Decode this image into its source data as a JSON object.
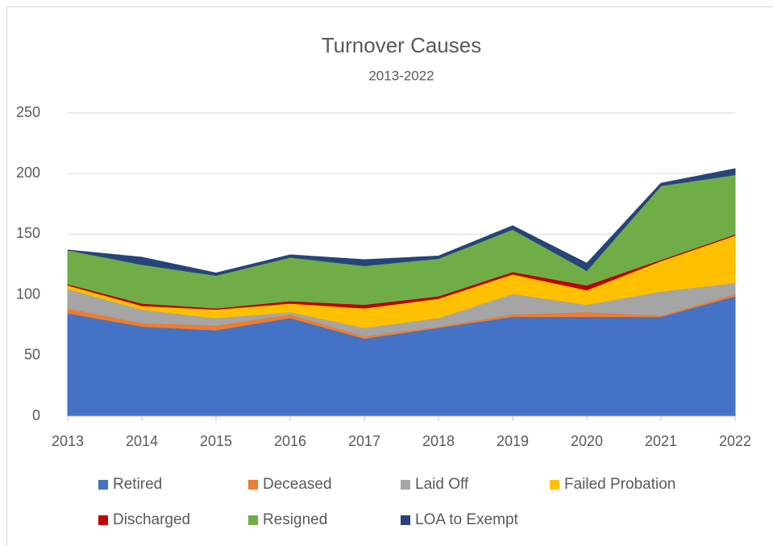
{
  "chart_data": {
    "type": "stacked_area",
    "title": "Turnover Causes",
    "subtitle": "2013-2022",
    "categories": [
      "2013",
      "2014",
      "2015",
      "2016",
      "2017",
      "2018",
      "2019",
      "2020",
      "2021",
      "2022"
    ],
    "series": [
      {
        "name": "Retired",
        "color": "#4472c4",
        "values": [
          85,
          74,
          71,
          81,
          64,
          73,
          82,
          82,
          82,
          99
        ]
      },
      {
        "name": "Deceased",
        "color": "#ed7d31",
        "values": [
          4,
          3,
          4,
          3,
          2,
          1,
          2,
          4,
          1,
          2
        ]
      },
      {
        "name": "Laid Off",
        "color": "#a5a5a5",
        "values": [
          16,
          11,
          6,
          2,
          7,
          7,
          17,
          6,
          20,
          9
        ]
      },
      {
        "name": "Failed Probation",
        "color": "#ffc000",
        "values": [
          3,
          3,
          7,
          7,
          16,
          16,
          16,
          12,
          25,
          39
        ]
      },
      {
        "name": "Discharged",
        "color": "#c00000",
        "values": [
          1,
          2,
          1,
          2,
          3,
          2,
          2,
          4,
          1,
          1
        ]
      },
      {
        "name": "Resigned",
        "color": "#70ad47",
        "values": [
          28,
          32,
          27,
          36,
          32,
          31,
          35,
          12,
          61,
          49
        ]
      },
      {
        "name": "LOA to Exempt",
        "color": "#264478",
        "values": [
          0,
          6,
          2,
          2,
          5,
          2,
          3,
          6,
          2,
          5
        ]
      }
    ],
    "ylim": [
      0,
      250
    ],
    "yticks": [
      0,
      50,
      100,
      150,
      200,
      250
    ],
    "grid": true
  }
}
